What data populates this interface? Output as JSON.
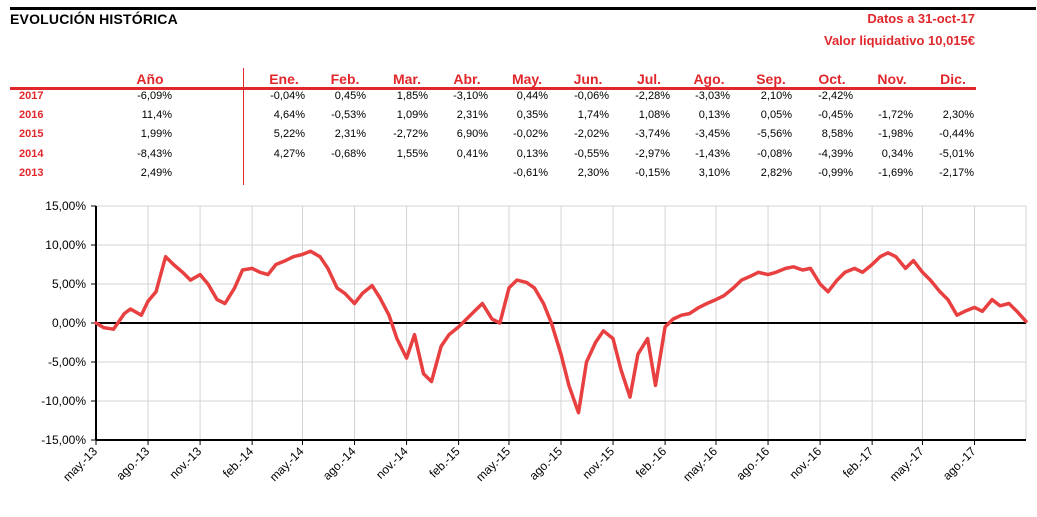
{
  "header": {
    "title": "EVOLUCIÓN HISTÓRICA",
    "date_line": "Datos a 31-oct-17",
    "nav_line": "Valor liquidativo 10,015€"
  },
  "table": {
    "year_header": "Año",
    "months": [
      "Ene.",
      "Feb.",
      "Mar.",
      "Abr.",
      "May.",
      "Jun.",
      "Jul.",
      "Ago.",
      "Sep.",
      "Oct.",
      "Nov.",
      "Dic."
    ],
    "rows": [
      {
        "year": "2017",
        "total": "-6,09%",
        "values": [
          "-0,04%",
          "0,45%",
          "1,85%",
          "-3,10%",
          "0,44%",
          "-0,06%",
          "-2,28%",
          "-3,03%",
          "2,10%",
          "-2,42%",
          "",
          ""
        ]
      },
      {
        "year": "2016",
        "total": "11,4%",
        "values": [
          "4,64%",
          "-0,53%",
          "1,09%",
          "2,31%",
          "0,35%",
          "1,74%",
          "1,08%",
          "0,13%",
          "0,05%",
          "-0,45%",
          "-1,72%",
          "2,30%"
        ]
      },
      {
        "year": "2015",
        "total": "1,99%",
        "values": [
          "5,22%",
          "2,31%",
          "-2,72%",
          "6,90%",
          "-0,02%",
          "-2,02%",
          "-3,74%",
          "-3,45%",
          "-5,56%",
          "8,58%",
          "-1,98%",
          "-0,44%"
        ]
      },
      {
        "year": "2014",
        "total": "-8,43%",
        "values": [
          "4,27%",
          "-0,68%",
          "1,55%",
          "0,41%",
          "0,13%",
          "-0,55%",
          "-2,97%",
          "-1,43%",
          "-0,08%",
          "-4,39%",
          "0,34%",
          "-5,01%"
        ]
      },
      {
        "year": "2013",
        "total": "2,49%",
        "values": [
          "",
          "",
          "",
          "",
          "-0,61%",
          "2,30%",
          "-0,15%",
          "3,10%",
          "2,82%",
          "-0,99%",
          "-1,69%",
          "-2,17%"
        ]
      }
    ]
  },
  "chart_data": {
    "type": "line",
    "title": "",
    "xlabel": "",
    "ylabel": "",
    "ylim": [
      -15,
      15
    ],
    "grid": true,
    "line_color": "#e84040",
    "y_ticks": [
      "-15,00%",
      "-10,00%",
      "-5,00%",
      "0,00%",
      "5,00%",
      "10,00%",
      "15,00%"
    ],
    "x_ticks": [
      "may.-13",
      "ago.-13",
      "nov.-13",
      "feb.-14",
      "may.-14",
      "ago.-14",
      "nov.-14",
      "feb.-15",
      "may.-15",
      "ago.-15",
      "nov.-15",
      "feb.-16",
      "may.-16",
      "ago.-16",
      "nov.-16",
      "feb.-17",
      "may.-17",
      "ago.-17"
    ],
    "series": [
      {
        "x": [
          "2013-05-01",
          "2013-05-15",
          "2013-06-01",
          "2013-06-20",
          "2013-07-01",
          "2013-07-20",
          "2013-08-01",
          "2013-08-15",
          "2013-09-01",
          "2013-09-15",
          "2013-10-01",
          "2013-10-15",
          "2013-11-01",
          "2013-11-15",
          "2013-12-01",
          "2013-12-15",
          "2014-01-01",
          "2014-01-15",
          "2014-02-01",
          "2014-02-15",
          "2014-03-01",
          "2014-03-15",
          "2014-04-01",
          "2014-04-15",
          "2014-05-01",
          "2014-05-15",
          "2014-06-01",
          "2014-06-15",
          "2014-07-01",
          "2014-07-15",
          "2014-08-01",
          "2014-08-15",
          "2014-09-01",
          "2014-09-15",
          "2014-10-01",
          "2014-10-15",
          "2014-11-01",
          "2014-11-15",
          "2014-12-01",
          "2014-12-15",
          "2015-01-01",
          "2015-01-15",
          "2015-02-01",
          "2015-02-15",
          "2015-03-01",
          "2015-03-15",
          "2015-04-01",
          "2015-04-15",
          "2015-05-01",
          "2015-05-15",
          "2015-06-01",
          "2015-06-15",
          "2015-07-01",
          "2015-07-15",
          "2015-08-01",
          "2015-08-15",
          "2015-09-01",
          "2015-09-15",
          "2015-10-01",
          "2015-10-15",
          "2015-11-01",
          "2015-11-15",
          "2015-12-01",
          "2015-12-15",
          "2016-01-01",
          "2016-01-15",
          "2016-02-01",
          "2016-02-15",
          "2016-03-01",
          "2016-03-15",
          "2016-04-01",
          "2016-04-15",
          "2016-05-01",
          "2016-05-15",
          "2016-06-01",
          "2016-06-15",
          "2016-07-01",
          "2016-07-15",
          "2016-08-01",
          "2016-08-15",
          "2016-09-01",
          "2016-09-15",
          "2016-10-01",
          "2016-10-15",
          "2016-11-01",
          "2016-11-15",
          "2016-12-01",
          "2016-12-15",
          "2017-01-01",
          "2017-01-15",
          "2017-02-01",
          "2017-02-15",
          "2017-03-01",
          "2017-03-15",
          "2017-04-01",
          "2017-04-15",
          "2017-05-01",
          "2017-05-15",
          "2017-06-01",
          "2017-06-15",
          "2017-07-01",
          "2017-07-15",
          "2017-08-01",
          "2017-08-15",
          "2017-09-01",
          "2017-09-15",
          "2017-10-01",
          "2017-10-15",
          "2017-10-31"
        ],
        "y": [
          0.0,
          -0.6,
          -0.8,
          1.2,
          1.8,
          1.0,
          2.8,
          4.0,
          8.5,
          7.5,
          6.5,
          5.5,
          6.2,
          5.0,
          3.0,
          2.5,
          4.5,
          6.8,
          7.0,
          6.5,
          6.2,
          7.5,
          8.0,
          8.5,
          8.8,
          9.2,
          8.5,
          7.0,
          4.5,
          3.8,
          2.5,
          3.8,
          4.8,
          3.2,
          1.0,
          -2.0,
          -4.5,
          -1.5,
          -6.5,
          -7.5,
          -3.0,
          -1.5,
          -0.5,
          0.5,
          1.5,
          2.5,
          0.5,
          0.0,
          4.5,
          5.5,
          5.2,
          4.5,
          2.5,
          0.0,
          -4.0,
          -8.0,
          -11.5,
          -5.0,
          -2.5,
          -1.0,
          -2.0,
          -6.0,
          -9.5,
          -4.0,
          -2.0,
          -8.0,
          -0.5,
          0.5,
          1.0,
          1.2,
          2.0,
          2.5,
          3.0,
          3.5,
          4.5,
          5.5,
          6.0,
          6.5,
          6.2,
          6.5,
          7.0,
          7.2,
          6.8,
          7.0,
          5.0,
          4.0,
          5.5,
          6.5,
          7.0,
          6.5,
          7.5,
          8.5,
          9.0,
          8.5,
          7.0,
          8.0,
          6.5,
          5.5,
          4.0,
          3.0,
          1.0,
          1.5,
          2.0,
          1.5,
          3.0,
          2.2,
          2.5,
          1.5,
          0.2
        ]
      }
    ]
  }
}
